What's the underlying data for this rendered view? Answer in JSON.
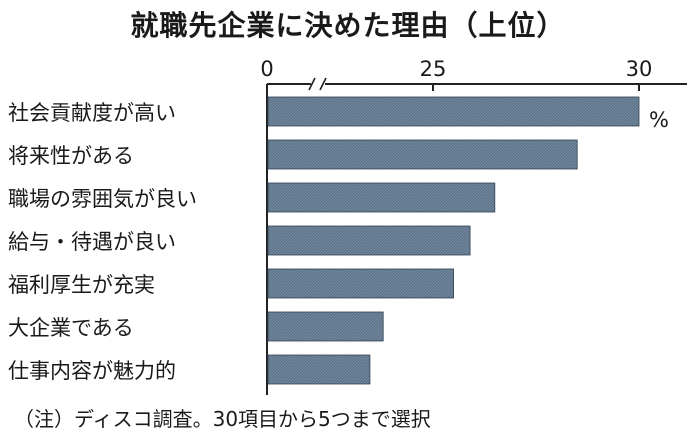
{
  "chart_data": {
    "type": "bar",
    "orientation": "horizontal",
    "title": "就職先企業に決めた理由（上位）",
    "categories": [
      "社会貢献度が高い",
      "将来性がある",
      "職場の雰囲気が良い",
      "給与・待遇が良い",
      "福利厚生が充実",
      "大企業である",
      "仕事内容が魅力的"
    ],
    "values": [
      30.0,
      28.5,
      26.5,
      25.9,
      25.5,
      17.5,
      15.5
    ],
    "unit": "%",
    "xticks": [
      {
        "value": 0,
        "label": "0"
      },
      {
        "value": 25,
        "label": "25"
      },
      {
        "value": 30,
        "label": "30"
      }
    ],
    "axis_break": "between 0 and 25",
    "xlim": [
      0,
      30
    ],
    "bar_color": "#5d7389",
    "note": "（注）ディスコ調査。30項目から5つまで選択"
  }
}
